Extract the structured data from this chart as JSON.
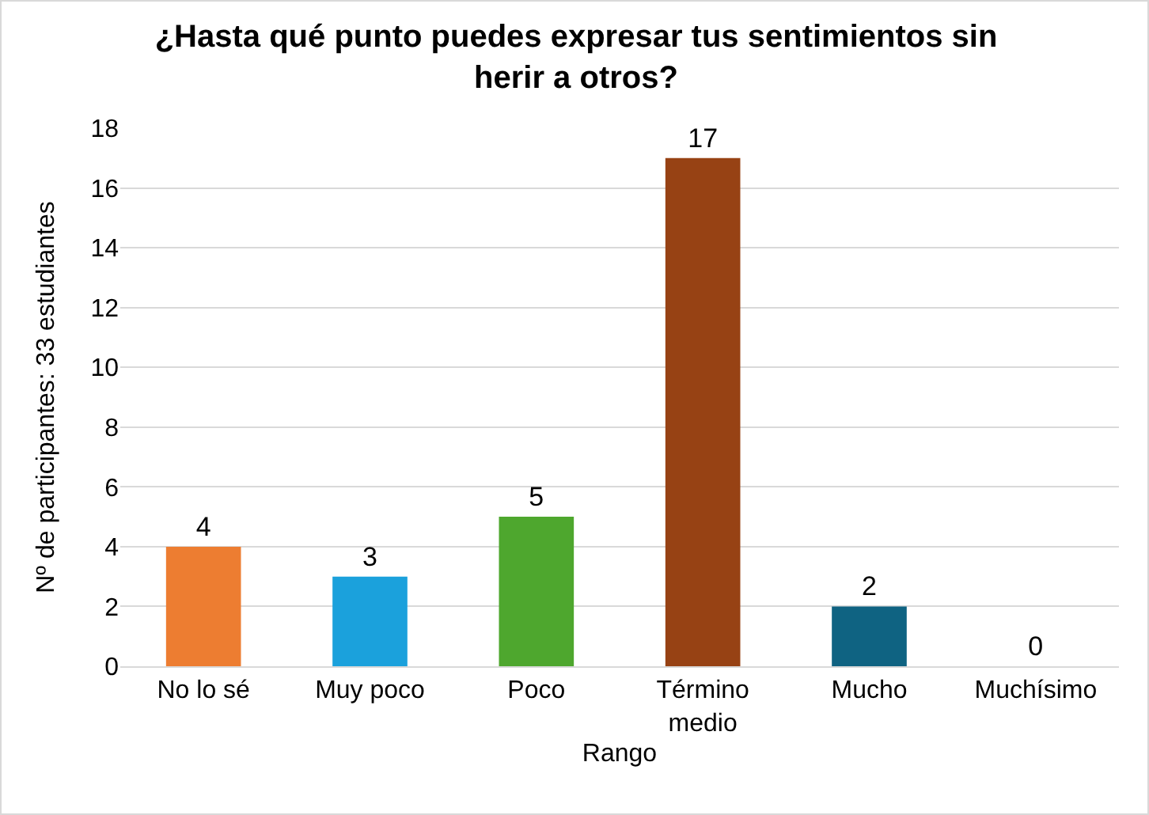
{
  "chart_data": {
    "type": "bar",
    "title": "¿Hasta qué punto puedes expresar tus sentimientos sin herir a otros?",
    "xlabel": "Rango",
    "ylabel": "Nº de participantes: 33 estudiantes",
    "categories": [
      "No lo sé",
      "Muy poco",
      "Poco",
      "Término medio",
      "Mucho",
      "Muchísimo"
    ],
    "values": [
      4,
      3,
      5,
      17,
      2,
      0
    ],
    "colors": [
      "#ed7d31",
      "#1ba1dc",
      "#4ea72e",
      "#974214",
      "#0f6382",
      "#7f7f7f"
    ],
    "ylim": [
      0,
      18
    ],
    "yticks": [
      0,
      2,
      4,
      6,
      8,
      10,
      12,
      14,
      16,
      18
    ],
    "grid": "y",
    "data_labels": true
  }
}
